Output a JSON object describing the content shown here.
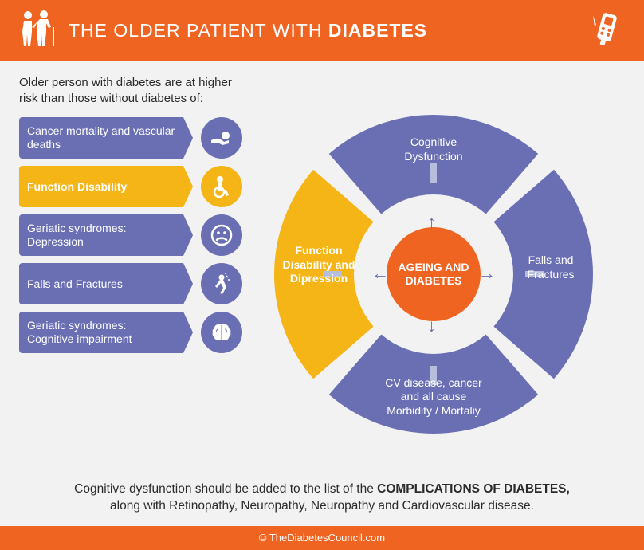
{
  "colors": {
    "orange": "#f06421",
    "purple": "#6a6fb4",
    "yellow": "#f5b516",
    "bg": "#f2f2f2",
    "gap": "#b6bedb",
    "text": "#2b2b2b",
    "white": "#ffffff"
  },
  "header": {
    "title_prefix": "THE OLDER PATIENT WITH ",
    "title_bold": "DIABETES"
  },
  "intro": "Older person with diabetes are at higher risk than those without diabetes of:",
  "risks": [
    {
      "label": "Cancer mortality and vascular deaths",
      "highlight": false,
      "icon": "person-fall"
    },
    {
      "label": "Function Disability",
      "highlight": true,
      "icon": "wheelchair"
    },
    {
      "label": "Geriatic syndromes: Depression",
      "highlight": false,
      "icon": "sad-face"
    },
    {
      "label": "Falls and Fractures",
      "highlight": false,
      "icon": "fall-stick"
    },
    {
      "label": "Geriatic syndromes: Cognitive impairment",
      "highlight": false,
      "icon": "brain"
    }
  ],
  "donut": {
    "center": "AGEING AND DIABETES",
    "inner_radius": 100,
    "outer_radius": 200,
    "gap_deg": 8,
    "segments": [
      {
        "label": "Cognitive Dysfunction",
        "highlight": false,
        "pos": "top"
      },
      {
        "label": "Falls and Fractures",
        "highlight": false,
        "pos": "right"
      },
      {
        "label": "CV disease, cancer and all cause Morbidity / Mortaliy",
        "highlight": false,
        "pos": "bottom"
      },
      {
        "label": "Function Disability and Dipression",
        "highlight": true,
        "pos": "left"
      }
    ]
  },
  "bottom": {
    "line1a": "Cognitive dysfunction should be added to the list of the ",
    "line1b": "COMPLICATIONS OF DIABETES,",
    "line2": "along with Retinopathy, Neuropathy, Neuropathy and Cardiovascular disease."
  },
  "footer": "© TheDiabetesCouncil.com"
}
